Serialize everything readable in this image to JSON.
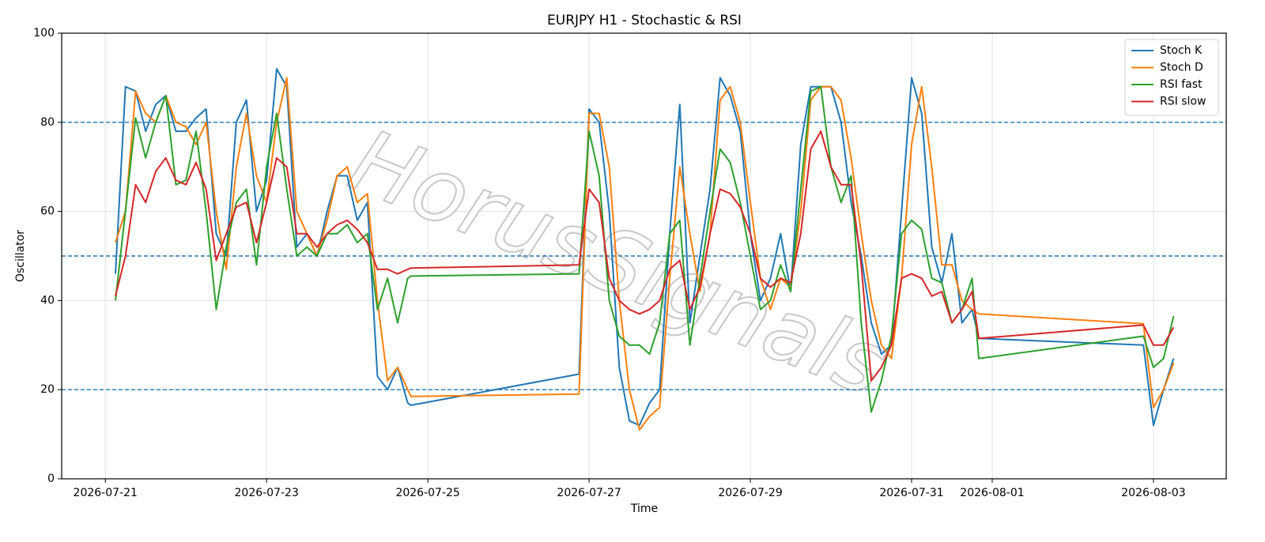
{
  "chart_data": {
    "type": "line",
    "title": "EURJPY H1 - Stochastic & RSI",
    "xlabel": "Time",
    "ylabel": "Oscillator",
    "watermark": "HorusSignals",
    "x": [
      "2026-07-21T03:00",
      "2026-07-21T06:00",
      "2026-07-21T09:00",
      "2026-07-21T12:00",
      "2026-07-21T15:00",
      "2026-07-21T18:00",
      "2026-07-21T21:00",
      "2026-07-22T00:00",
      "2026-07-22T03:00",
      "2026-07-22T06:00",
      "2026-07-22T09:00",
      "2026-07-22T12:00",
      "2026-07-22T15:00",
      "2026-07-22T18:00",
      "2026-07-22T21:00",
      "2026-07-23T00:00",
      "2026-07-23T03:00",
      "2026-07-23T06:00",
      "2026-07-23T09:00",
      "2026-07-23T12:00",
      "2026-07-23T15:00",
      "2026-07-23T18:00",
      "2026-07-23T21:00",
      "2026-07-24T00:00",
      "2026-07-24T03:00",
      "2026-07-24T06:00",
      "2026-07-24T09:00",
      "2026-07-24T12:00",
      "2026-07-24T15:00",
      "2026-07-24T18:00",
      "2026-07-24T19:00",
      "2026-07-26T21:00",
      "2026-07-27T00:00",
      "2026-07-27T03:00",
      "2026-07-27T06:00",
      "2026-07-27T09:00",
      "2026-07-27T12:00",
      "2026-07-27T15:00",
      "2026-07-27T18:00",
      "2026-07-27T21:00",
      "2026-07-28T00:00",
      "2026-07-28T03:00",
      "2026-07-28T06:00",
      "2026-07-28T09:00",
      "2026-07-28T12:00",
      "2026-07-28T15:00",
      "2026-07-28T18:00",
      "2026-07-28T21:00",
      "2026-07-29T00:00",
      "2026-07-29T03:00",
      "2026-07-29T06:00",
      "2026-07-29T09:00",
      "2026-07-29T12:00",
      "2026-07-29T15:00",
      "2026-07-29T18:00",
      "2026-07-29T21:00",
      "2026-07-30T00:00",
      "2026-07-30T03:00",
      "2026-07-30T06:00",
      "2026-07-30T09:00",
      "2026-07-30T12:00",
      "2026-07-30T15:00",
      "2026-07-30T18:00",
      "2026-07-30T21:00",
      "2026-07-31T00:00",
      "2026-07-31T03:00",
      "2026-07-31T06:00",
      "2026-07-31T09:00",
      "2026-07-31T12:00",
      "2026-07-31T15:00",
      "2026-07-31T18:00",
      "2026-07-31T20:00",
      "2026-08-02T21:00",
      "2026-08-03T00:00",
      "2026-08-03T03:00",
      "2026-08-03T06:00"
    ],
    "series": [
      {
        "name": "Stoch K",
        "color": "#1f77b4",
        "values": [
          46,
          88,
          87,
          78,
          84,
          86,
          78,
          78,
          81,
          83,
          55,
          50,
          80,
          85,
          60,
          67,
          92,
          88,
          52,
          55,
          50,
          60,
          68,
          68,
          58,
          62,
          23,
          20,
          25,
          17,
          16.5,
          23.5,
          83,
          80,
          60,
          25,
          13,
          12,
          17,
          20,
          55,
          84,
          35,
          50,
          65,
          90,
          86,
          78,
          55,
          40,
          45,
          55,
          42,
          75,
          88,
          88,
          88,
          80,
          62,
          50,
          35,
          28,
          30,
          60,
          90,
          82,
          52,
          44,
          55,
          35,
          38,
          31.5,
          30,
          12,
          20,
          27
        ]
      },
      {
        "name": "Stoch D",
        "color": "#ff7f0e",
        "values": [
          53,
          60,
          87,
          82,
          80,
          86,
          80,
          79,
          75,
          80,
          60,
          47,
          70,
          82,
          68,
          62,
          80,
          90,
          60,
          55,
          50,
          58,
          68,
          70,
          62,
          64,
          40,
          22,
          25,
          20,
          18.5,
          19,
          82,
          82,
          70,
          40,
          20,
          11,
          14,
          16,
          45,
          70,
          55,
          42,
          55,
          85,
          88,
          80,
          62,
          45,
          38,
          45,
          43,
          60,
          85,
          88,
          88,
          85,
          72,
          55,
          40,
          30,
          27,
          45,
          75,
          88,
          70,
          48,
          48,
          40,
          38,
          37,
          34.8,
          16,
          20,
          26
        ]
      },
      {
        "name": "RSI fast",
        "color": "#2ca02c",
        "values": [
          40,
          60,
          81,
          72,
          80,
          86,
          66,
          67,
          78,
          60,
          38,
          52,
          62,
          65,
          48,
          70,
          82,
          65,
          50,
          52,
          50,
          55,
          55,
          57,
          53,
          55,
          38,
          45,
          35,
          45,
          45.5,
          46,
          78,
          68,
          40,
          32,
          30,
          30,
          28,
          35,
          55,
          58,
          30,
          45,
          60,
          74,
          71,
          62,
          50,
          38,
          40,
          48,
          42,
          65,
          87,
          88,
          70,
          62,
          68,
          35,
          15,
          22,
          32,
          55,
          58,
          56,
          45,
          44,
          35,
          38,
          45,
          27,
          32,
          25,
          27,
          36.5
        ]
      },
      {
        "name": "RSI slow",
        "color": "#d62728",
        "values": [
          41,
          50,
          66,
          62,
          69,
          72,
          67,
          66,
          71,
          65,
          49,
          55,
          61,
          62,
          53,
          62,
          72,
          70,
          55,
          55,
          52,
          55,
          57,
          58,
          56,
          53,
          47,
          47,
          46,
          47,
          47.3,
          48,
          65,
          62,
          45,
          40,
          38,
          37,
          38,
          40,
          47,
          49,
          38,
          43,
          55,
          65,
          64,
          61,
          55,
          45,
          43,
          45,
          44,
          55,
          74,
          78,
          70,
          66,
          66,
          48,
          22,
          25,
          30,
          45,
          46,
          45,
          41,
          42,
          35,
          38,
          42,
          31.5,
          34.5,
          30,
          30,
          34
        ]
      }
    ],
    "xlim": [
      "2026-07-20T11:00",
      "2026-08-03T21:40"
    ],
    "xticks": [
      "2026-07-21",
      "2026-07-23",
      "2026-07-25",
      "2026-07-27",
      "2026-07-29",
      "2026-07-31",
      "2026-08-01",
      "2026-08-03"
    ],
    "ylim": [
      0,
      100
    ],
    "yticks": [
      0,
      20,
      40,
      60,
      80,
      100
    ],
    "hlines": [
      80,
      50,
      20
    ],
    "hline_color": "#1f77b4",
    "grid": true,
    "legend": "upper right"
  }
}
